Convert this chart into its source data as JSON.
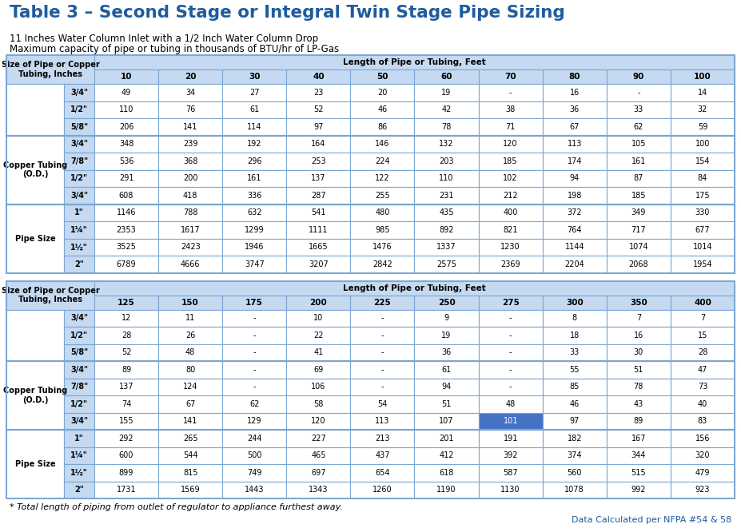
{
  "title": "Table 3 – Second Stage or Integral Twin Stage Pipe Sizing",
  "subtitle1": "11 Inches Water Column Inlet with a 1/2 Inch Water Column Drop",
  "subtitle2": "Maximum capacity of pipe or tubing in thousands of BTU/hr of LP-Gas",
  "footnote": "* Total length of piping from outlet of regulator to appliance furthest away.",
  "data_credit": "Data Calculated per NFPA #54 & 58",
  "title_color": "#1F5C9E",
  "subtitle_color": "#000000",
  "header_bg": "#C5D9F1",
  "border_color": "#7BA7D4",
  "text_color": "#000000",
  "table1": {
    "col_headers": [
      "10",
      "20",
      "30",
      "40",
      "50",
      "60",
      "70",
      "80",
      "90",
      "100"
    ],
    "row_labels": [
      [
        "",
        "3/4\""
      ],
      [
        "",
        "1/2\""
      ],
      [
        "",
        "5/8\""
      ],
      [
        "Copper Tubing",
        "3/4\""
      ],
      [
        "(O.D.)",
        "7/8\""
      ],
      [
        "",
        "1/2\""
      ],
      [
        "",
        "3/4\""
      ],
      [
        "Pipe Size",
        "1\""
      ],
      [
        "",
        "1¼\""
      ],
      [
        "",
        "1½\""
      ],
      [
        "",
        "2\""
      ]
    ],
    "data": [
      [
        "49",
        "34",
        "27",
        "23",
        "20",
        "19",
        "-",
        "16",
        "-",
        "14"
      ],
      [
        "110",
        "76",
        "61",
        "52",
        "46",
        "42",
        "38",
        "36",
        "33",
        "32"
      ],
      [
        "206",
        "141",
        "114",
        "97",
        "86",
        "78",
        "71",
        "67",
        "62",
        "59"
      ],
      [
        "348",
        "239",
        "192",
        "164",
        "146",
        "132",
        "120",
        "113",
        "105",
        "100"
      ],
      [
        "536",
        "368",
        "296",
        "253",
        "224",
        "203",
        "185",
        "174",
        "161",
        "154"
      ],
      [
        "291",
        "200",
        "161",
        "137",
        "122",
        "110",
        "102",
        "94",
        "87",
        "84"
      ],
      [
        "608",
        "418",
        "336",
        "287",
        "255",
        "231",
        "212",
        "198",
        "185",
        "175"
      ],
      [
        "1146",
        "788",
        "632",
        "541",
        "480",
        "435",
        "400",
        "372",
        "349",
        "330"
      ],
      [
        "2353",
        "1617",
        "1299",
        "1111",
        "985",
        "892",
        "821",
        "764",
        "717",
        "677"
      ],
      [
        "3525",
        "2423",
        "1946",
        "1665",
        "1476",
        "1337",
        "1230",
        "1144",
        "1074",
        "1014"
      ],
      [
        "6789",
        "4666",
        "3747",
        "3207",
        "2842",
        "2575",
        "2369",
        "2204",
        "2068",
        "1954"
      ]
    ],
    "highlight_cells": []
  },
  "table2": {
    "col_headers": [
      "125",
      "150",
      "175",
      "200",
      "225",
      "250",
      "275",
      "300",
      "350",
      "400"
    ],
    "row_labels": [
      [
        "",
        "3/4\""
      ],
      [
        "",
        "1/2\""
      ],
      [
        "",
        "5/8\""
      ],
      [
        "Copper Tubing",
        "3/4\""
      ],
      [
        "(O.D.)",
        "7/8\""
      ],
      [
        "",
        "1/2\""
      ],
      [
        "",
        "3/4\""
      ],
      [
        "Pipe Size",
        "1\""
      ],
      [
        "",
        "1¼\""
      ],
      [
        "",
        "1½\""
      ],
      [
        "",
        "2\""
      ]
    ],
    "data": [
      [
        "12",
        "11",
        "-",
        "10",
        "-",
        "9",
        "-",
        "8",
        "7",
        "7"
      ],
      [
        "28",
        "26",
        "-",
        "22",
        "-",
        "19",
        "-",
        "18",
        "16",
        "15"
      ],
      [
        "52",
        "48",
        "-",
        "41",
        "-",
        "36",
        "-",
        "33",
        "30",
        "28"
      ],
      [
        "89",
        "80",
        "-",
        "69",
        "-",
        "61",
        "-",
        "55",
        "51",
        "47"
      ],
      [
        "137",
        "124",
        "-",
        "106",
        "-",
        "94",
        "-",
        "85",
        "78",
        "73"
      ],
      [
        "74",
        "67",
        "62",
        "58",
        "54",
        "51",
        "48",
        "46",
        "43",
        "40"
      ],
      [
        "155",
        "141",
        "129",
        "120",
        "113",
        "107",
        "101",
        "97",
        "89",
        "83"
      ],
      [
        "292",
        "265",
        "244",
        "227",
        "213",
        "201",
        "191",
        "182",
        "167",
        "156"
      ],
      [
        "600",
        "544",
        "500",
        "465",
        "437",
        "412",
        "392",
        "374",
        "344",
        "320"
      ],
      [
        "899",
        "815",
        "749",
        "697",
        "654",
        "618",
        "587",
        "560",
        "515",
        "479"
      ],
      [
        "1731",
        "1569",
        "1443",
        "1343",
        "1260",
        "1190",
        "1130",
        "1078",
        "992",
        "923"
      ]
    ],
    "highlight_cells": [
      [
        6,
        6
      ]
    ]
  }
}
